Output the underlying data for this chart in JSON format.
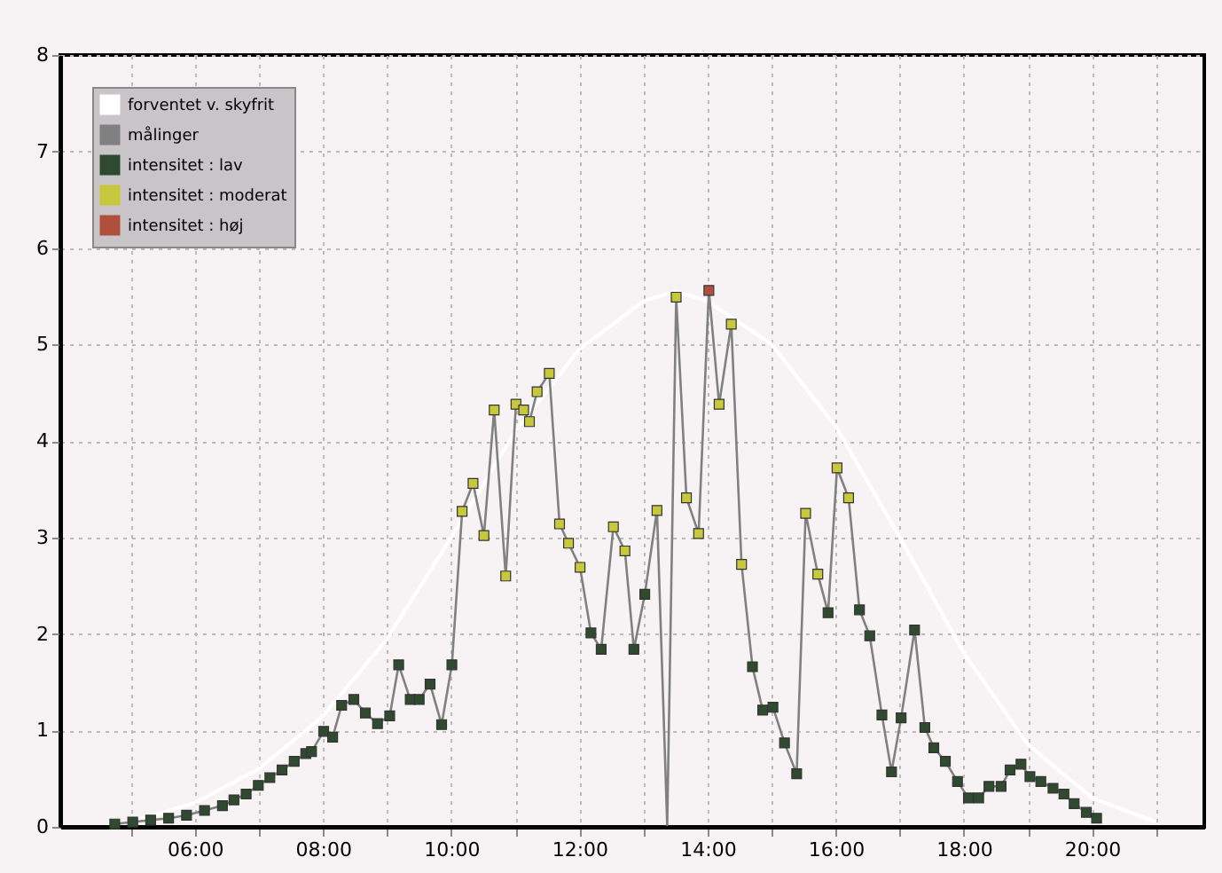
{
  "chart_data": {
    "type": "line",
    "xlim": [
      3.9,
      21.75
    ],
    "ylim": [
      0,
      8
    ],
    "xticks": [
      {
        "value": 5,
        "label": null
      },
      {
        "value": 6,
        "label": "06:00"
      },
      {
        "value": 7,
        "label": null
      },
      {
        "value": 8,
        "label": "08:00"
      },
      {
        "value": 9,
        "label": null
      },
      {
        "value": 10,
        "label": "10:00"
      },
      {
        "value": 11,
        "label": null
      },
      {
        "value": 12,
        "label": "12:00"
      },
      {
        "value": 13,
        "label": null
      },
      {
        "value": 14,
        "label": "14:00"
      },
      {
        "value": 15,
        "label": null
      },
      {
        "value": 16,
        "label": "16:00"
      },
      {
        "value": 17,
        "label": null
      },
      {
        "value": 18,
        "label": "18:00"
      },
      {
        "value": 19,
        "label": null
      },
      {
        "value": 20,
        "label": "20:00"
      },
      {
        "value": 21,
        "label": null
      }
    ],
    "yticks": [
      0,
      1,
      2,
      3,
      4,
      5,
      6,
      7,
      8
    ],
    "grid": true,
    "legend": "top left",
    "line_style": "solid",
    "series": [
      {
        "name": "forventet v. skyfrit",
        "marker": "none",
        "color": "#ffffff",
        "x": [
          5,
          6,
          7,
          8,
          9,
          10,
          11,
          12,
          13,
          13.5,
          14,
          15,
          16,
          17,
          18,
          19,
          20,
          21
        ],
        "values": [
          0.05,
          0.25,
          0.6,
          1.15,
          1.95,
          3.0,
          4.1,
          4.95,
          5.45,
          5.55,
          5.45,
          5.0,
          4.15,
          3.0,
          1.8,
          0.85,
          0.3,
          0.05
        ]
      },
      {
        "name": "målinger",
        "marker": "none",
        "color": "#808080",
        "x": [
          4.75,
          5.03,
          5.31,
          5.59,
          5.87,
          6.15,
          6.43,
          6.61,
          6.8,
          6.99,
          7.17,
          7.36,
          7.55,
          7.73,
          7.82,
          8.01,
          8.15,
          8.29,
          8.48,
          8.66,
          8.85,
          9.04,
          9.18,
          9.36,
          9.5,
          9.67,
          9.85,
          10.01,
          10.17,
          10.34,
          10.51,
          10.67,
          10.85,
          11.01,
          11.13,
          11.22,
          11.34,
          11.53,
          11.69,
          11.83,
          12.01,
          12.18,
          12.34,
          12.53,
          12.71,
          12.85,
          13.02,
          13.21,
          13.37,
          13.51,
          13.67,
          13.86,
          14.02,
          14.18,
          14.37,
          14.53,
          14.7,
          14.86,
          15.02,
          15.2,
          15.39,
          15.53,
          15.72,
          15.88,
          16.02,
          16.2,
          16.37,
          16.53,
          16.72,
          16.87,
          17.02,
          17.23,
          17.39,
          17.53,
          17.71,
          17.9,
          18.07,
          18.23,
          18.39,
          18.58,
          18.72,
          18.89,
          19.03,
          19.2,
          19.39,
          19.56,
          19.72,
          19.91,
          20.07
        ],
        "values": [
          0.03,
          0.05,
          0.07,
          0.09,
          0.12,
          0.17,
          0.22,
          0.28,
          0.34,
          0.43,
          0.51,
          0.59,
          0.68,
          0.76,
          0.78,
          0.99,
          0.93,
          1.26,
          1.32,
          1.18,
          1.07,
          1.15,
          1.68,
          1.32,
          1.32,
          1.48,
          1.06,
          1.68,
          3.27,
          3.56,
          3.02,
          4.32,
          2.6,
          4.38,
          4.32,
          4.2,
          4.51,
          4.7,
          3.14,
          2.94,
          2.69,
          2.01,
          1.84,
          3.11,
          2.86,
          1.84,
          2.41,
          3.28,
          0.02,
          5.49,
          3.41,
          3.04,
          5.56,
          4.38,
          5.21,
          2.72,
          1.66,
          1.21,
          1.24,
          0.87,
          0.55,
          3.25,
          2.62,
          2.22,
          3.72,
          3.41,
          2.25,
          1.98,
          1.16,
          0.57,
          1.13,
          2.04,
          1.03,
          0.82,
          0.68,
          0.47,
          0.3,
          0.3,
          0.42,
          0.42,
          0.59,
          0.65,
          0.52,
          0.47,
          0.4,
          0.34,
          0.24,
          0.15,
          0.09
        ]
      },
      {
        "name": "intensitet : lav",
        "type": "scatter",
        "marker": "square",
        "color": "#2f4a2f",
        "x": [
          4.75,
          5.03,
          5.31,
          5.59,
          5.87,
          6.15,
          6.43,
          6.61,
          6.8,
          6.99,
          7.17,
          7.36,
          7.55,
          7.73,
          7.82,
          8.01,
          8.15,
          8.29,
          8.48,
          8.66,
          8.85,
          9.04,
          9.18,
          9.36,
          9.5,
          9.67,
          9.85,
          10.01,
          12.18,
          12.34,
          12.85,
          13.02,
          14.7,
          14.86,
          15.02,
          15.2,
          15.39,
          15.88,
          16.37,
          16.53,
          16.72,
          16.87,
          17.02,
          17.23,
          17.39,
          17.53,
          17.71,
          17.9,
          18.07,
          18.23,
          18.39,
          18.58,
          18.72,
          18.89,
          19.03,
          19.2,
          19.39,
          19.56,
          19.72,
          19.91,
          20.07
        ],
        "values": [
          0.03,
          0.05,
          0.07,
          0.09,
          0.12,
          0.17,
          0.22,
          0.28,
          0.34,
          0.43,
          0.51,
          0.59,
          0.68,
          0.76,
          0.78,
          0.99,
          0.93,
          1.26,
          1.32,
          1.18,
          1.07,
          1.15,
          1.68,
          1.32,
          1.32,
          1.48,
          1.06,
          1.68,
          2.01,
          1.84,
          1.84,
          2.41,
          1.66,
          1.21,
          1.24,
          0.87,
          0.55,
          2.22,
          2.25,
          1.98,
          1.16,
          0.57,
          1.13,
          2.04,
          1.03,
          0.82,
          0.68,
          0.47,
          0.3,
          0.3,
          0.42,
          0.42,
          0.59,
          0.65,
          0.52,
          0.47,
          0.4,
          0.34,
          0.24,
          0.15,
          0.09
        ]
      },
      {
        "name": "intensitet : moderat",
        "type": "scatter",
        "marker": "square",
        "color": "#c8c83c",
        "x": [
          10.17,
          10.34,
          10.51,
          10.67,
          10.85,
          11.01,
          11.13,
          11.22,
          11.34,
          11.53,
          11.69,
          11.83,
          12.01,
          12.53,
          12.71,
          13.21,
          13.51,
          13.67,
          13.86,
          14.18,
          14.37,
          14.53,
          15.53,
          15.72,
          16.02,
          16.2
        ],
        "values": [
          3.27,
          3.56,
          3.02,
          4.32,
          2.6,
          4.38,
          4.32,
          4.2,
          4.51,
          4.7,
          3.14,
          2.94,
          2.69,
          3.11,
          2.86,
          3.28,
          5.49,
          3.41,
          3.04,
          4.38,
          5.21,
          2.72,
          3.25,
          2.62,
          3.72,
          3.41
        ]
      },
      {
        "name": "intensitet : høj",
        "type": "scatter",
        "marker": "square",
        "color": "#b0503c",
        "x": [
          14.02
        ],
        "values": [
          5.56
        ]
      }
    ]
  }
}
